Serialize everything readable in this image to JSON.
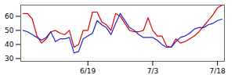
{
  "chart_data": {
    "type": "line",
    "categories": [
      null,
      null,
      null,
      null,
      null,
      null,
      null,
      null,
      null,
      null,
      null,
      null,
      null,
      null,
      "6/19",
      null,
      null,
      null,
      null,
      null,
      null,
      null,
      null,
      null,
      null,
      null,
      null,
      null,
      "7/3",
      null,
      null,
      null,
      null,
      null,
      null,
      null,
      null,
      null,
      null,
      null,
      null,
      null,
      "7/18",
      null
    ],
    "series": [
      {
        "color": "#dd0000",
        "values": [
          62,
          62,
          58,
          46,
          41,
          44,
          49,
          50,
          48,
          47,
          50,
          38,
          40,
          50,
          50,
          63,
          63,
          56,
          54,
          50,
          62,
          60,
          55,
          50,
          49,
          49,
          50,
          59,
          50,
          46,
          46,
          39,
          38,
          44,
          41,
          42,
          44,
          46,
          49,
          53,
          57,
          61,
          66,
          68
        ]
      },
      {
        "color": "#2222cc",
        "values": [
          50,
          49,
          47,
          45,
          43,
          45,
          49,
          42,
          44,
          44,
          45,
          34,
          35,
          44,
          46,
          48,
          57,
          54,
          52,
          47,
          55,
          62,
          57,
          52,
          50,
          47,
          45,
          45,
          45,
          43,
          40,
          38,
          38,
          42,
          45,
          46,
          48,
          51,
          52,
          52,
          54,
          55,
          57,
          58
        ]
      }
    ],
    "ylim": [
      28,
      68
    ],
    "yticks": [
      30,
      40,
      50,
      60
    ]
  }
}
